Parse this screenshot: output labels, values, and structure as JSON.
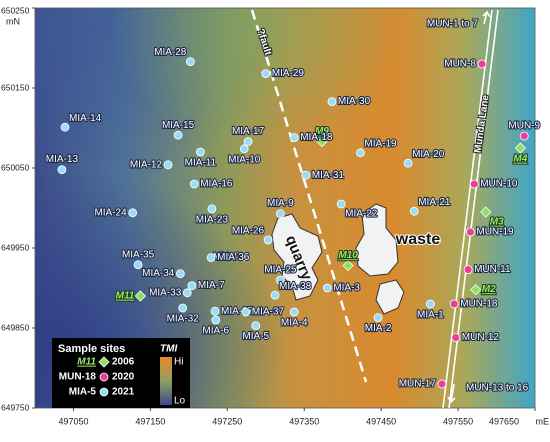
{
  "map": {
    "xlim": [
      497000,
      497650
    ],
    "ylim": [
      649750,
      650250
    ],
    "xticks": [
      497050,
      497150,
      497250,
      497350,
      497450,
      497550,
      497650
    ],
    "yticks": [
      649750,
      649850,
      649950,
      650050,
      650150,
      650250
    ],
    "x_unit": "mE",
    "y_unit": "mN",
    "annotations": {
      "fault": "?fault",
      "quarry": "quarry",
      "waste": "waste",
      "road": "Munda Lane",
      "north_arrow": "MUN-1 to 7",
      "south_arrow": "MUN-13 to 16"
    },
    "legend": {
      "title": "Sample sites",
      "colorbar_title": "TMI",
      "colorbar_high": "Hi",
      "colorbar_low": "Lo"
    },
    "series": [
      {
        "name": "2006",
        "color": "#8ee060",
        "marker": "diamond",
        "legend_example": "M11",
        "sites": [
          {
            "label": "M9",
            "x": 497373,
            "y": 650083
          },
          {
            "label": "M4",
            "x": 497631,
            "y": 650075
          },
          {
            "label": "M3",
            "x": 497586,
            "y": 649995
          },
          {
            "label": "M10",
            "x": 497407,
            "y": 649928
          },
          {
            "label": "M11",
            "x": 497137,
            "y": 649890
          },
          {
            "label": "M2",
            "x": 497573,
            "y": 649898
          }
        ]
      },
      {
        "name": "2020",
        "color": "#ec3d9c",
        "marker": "circle",
        "legend_example": "MUN-18",
        "sites": [
          {
            "label": "MUN-8",
            "x": 497581,
            "y": 650180
          },
          {
            "label": "MUN-9",
            "x": 497636,
            "y": 650090
          },
          {
            "label": "MUN-10",
            "x": 497571,
            "y": 650030
          },
          {
            "label": "MUN-19",
            "x": 497566,
            "y": 649970
          },
          {
            "label": "MUN-11",
            "x": 497563,
            "y": 649923
          },
          {
            "label": "MUN-18",
            "x": 497545,
            "y": 649880
          },
          {
            "label": "MUN-12",
            "x": 497547,
            "y": 649838
          },
          {
            "label": "MUN-17",
            "x": 497529,
            "y": 649780
          }
        ]
      },
      {
        "name": "2021",
        "color": "#9adcf7",
        "marker": "circle",
        "legend_example": "MIA-5",
        "sites": [
          {
            "label": "MIA-28",
            "x": 497202,
            "y": 650183
          },
          {
            "label": "MIA-29",
            "x": 497300,
            "y": 650168
          },
          {
            "label": "MIA-30",
            "x": 497386,
            "y": 650133
          },
          {
            "label": "MIA-14",
            "x": 497039,
            "y": 650101
          },
          {
            "label": "MIA-15",
            "x": 497186,
            "y": 650091
          },
          {
            "label": "MIA-17",
            "x": 497277,
            "y": 650083
          },
          {
            "label": "MIA-18",
            "x": 497337,
            "y": 650088
          },
          {
            "label": "MIA-10",
            "x": 497272,
            "y": 650074
          },
          {
            "label": "MIA-11",
            "x": 497215,
            "y": 650070
          },
          {
            "label": "MIA-12",
            "x": 497173,
            "y": 650054
          },
          {
            "label": "MIA-13",
            "x": 497035,
            "y": 650048
          },
          {
            "label": "MIA-19",
            "x": 497423,
            "y": 650069
          },
          {
            "label": "MIA-20",
            "x": 497485,
            "y": 650056
          },
          {
            "label": "MIA-16",
            "x": 497207,
            "y": 650030
          },
          {
            "label": "MIA-31",
            "x": 497352,
            "y": 650041
          },
          {
            "label": "MIA-21",
            "x": 497493,
            "y": 649996
          },
          {
            "label": "MIA-22",
            "x": 497398,
            "y": 650005
          },
          {
            "label": "MIA-24",
            "x": 497127,
            "y": 649994
          },
          {
            "label": "MIA-9",
            "x": 497319,
            "y": 649993
          },
          {
            "label": "MIA-23",
            "x": 497230,
            "y": 649999
          },
          {
            "label": "MIA-26",
            "x": 497303,
            "y": 649960
          },
          {
            "label": "MIA-8",
            "x": 497274,
            "y": 649939
          },
          {
            "label": "MIA-35",
            "x": 497134,
            "y": 649929
          },
          {
            "label": "MIA-36",
            "x": 497229,
            "y": 649938
          },
          {
            "label": "MIA-34",
            "x": 497189,
            "y": 649918
          },
          {
            "label": "MIA-25",
            "x": 497319,
            "y": 649910
          },
          {
            "label": "MIA-3",
            "x": 497380,
            "y": 649900
          },
          {
            "label": "MIA-33",
            "x": 497198,
            "y": 649894
          },
          {
            "label": "MIA-7",
            "x": 497204,
            "y": 649903
          },
          {
            "label": "MIA-38",
            "x": 497312,
            "y": 649891
          },
          {
            "label": "MIA-1",
            "x": 497514,
            "y": 649880
          },
          {
            "label": "MIA-27",
            "x": 497234,
            "y": 649871
          },
          {
            "label": "MIA-32",
            "x": 497192,
            "y": 649875
          },
          {
            "label": "MIA-37",
            "x": 497274,
            "y": 649870
          },
          {
            "label": "MIA-4",
            "x": 497337,
            "y": 649870
          },
          {
            "label": "MIA-2",
            "x": 497446,
            "y": 649863
          },
          {
            "label": "MIA-6",
            "x": 497235,
            "y": 649860
          },
          {
            "label": "MIA-5",
            "x": 497287,
            "y": 649853
          }
        ]
      }
    ]
  }
}
